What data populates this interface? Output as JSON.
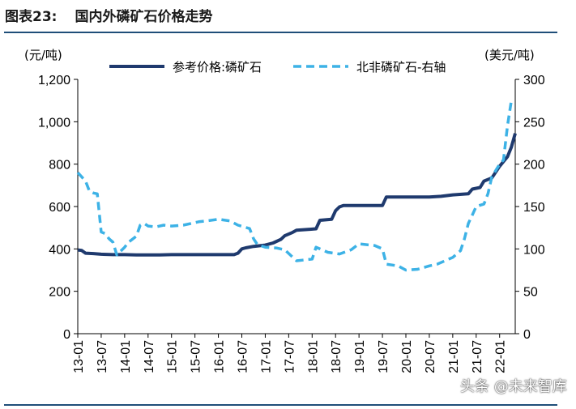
{
  "figure": {
    "label": "图表23:",
    "title": "国内外磷矿石价格走势"
  },
  "watermark": "头条 @未来智库",
  "chart_data": {
    "type": "line",
    "y_left_unit": "(元/吨)",
    "y_right_unit": "(美元/吨)",
    "y_left_lim": [
      0,
      1200
    ],
    "y_right_lim": [
      0,
      300
    ],
    "y_left_ticks": [
      "0",
      "200",
      "400",
      "600",
      "800",
      "1,000",
      "1,200"
    ],
    "y_right_ticks": [
      "0",
      "50",
      "100",
      "150",
      "200",
      "250",
      "300"
    ],
    "x_ticks": [
      "13-01",
      "13-07",
      "14-01",
      "14-07",
      "15-01",
      "15-07",
      "16-01",
      "16-07",
      "17-01",
      "17-07",
      "18-01",
      "18-07",
      "19-01",
      "19-07",
      "20-01",
      "20-07",
      "21-01",
      "21-07",
      "22-01"
    ],
    "legend_position": "top",
    "series": [
      {
        "name": "参考价格:磷矿石",
        "axis": "left",
        "style": "solid",
        "color": "#1f3a6e",
        "points": [
          [
            "13-01",
            395
          ],
          [
            "13-02",
            393
          ],
          [
            "13-03",
            380
          ],
          [
            "13-05",
            378
          ],
          [
            "13-07",
            375
          ],
          [
            "13-10",
            373
          ],
          [
            "14-01",
            373
          ],
          [
            "14-04",
            372
          ],
          [
            "14-07",
            372
          ],
          [
            "14-10",
            372
          ],
          [
            "15-01",
            373
          ],
          [
            "15-04",
            373
          ],
          [
            "15-07",
            373
          ],
          [
            "15-10",
            373
          ],
          [
            "16-01",
            373
          ],
          [
            "16-05",
            373
          ],
          [
            "16-06",
            380
          ],
          [
            "16-07",
            400
          ],
          [
            "16-08",
            405
          ],
          [
            "16-10",
            412
          ],
          [
            "17-01",
            418
          ],
          [
            "17-03",
            428
          ],
          [
            "17-05",
            445
          ],
          [
            "17-06",
            462
          ],
          [
            "17-08",
            478
          ],
          [
            "17-09",
            488
          ],
          [
            "17-12",
            492
          ],
          [
            "18-02",
            495
          ],
          [
            "18-03",
            535
          ],
          [
            "18-06",
            540
          ],
          [
            "18-07",
            580
          ],
          [
            "18-08",
            598
          ],
          [
            "18-09",
            605
          ],
          [
            "19-01",
            605
          ],
          [
            "19-05",
            605
          ],
          [
            "19-07",
            605
          ],
          [
            "19-08",
            645
          ],
          [
            "20-01",
            645
          ],
          [
            "20-07",
            645
          ],
          [
            "20-10",
            648
          ],
          [
            "21-01",
            655
          ],
          [
            "21-05",
            660
          ],
          [
            "21-06",
            682
          ],
          [
            "21-08",
            690
          ],
          [
            "21-09",
            720
          ],
          [
            "21-11",
            735
          ],
          [
            "22-01",
            790
          ],
          [
            "22-03",
            835
          ],
          [
            "22-04",
            880
          ],
          [
            "22-05",
            945
          ]
        ]
      },
      {
        "name": "北非磷矿石-右轴",
        "axis": "right",
        "style": "dashed",
        "color": "#3db2e6",
        "points": [
          [
            "13-01",
            190
          ],
          [
            "13-03",
            180
          ],
          [
            "13-04",
            168
          ],
          [
            "13-05",
            166
          ],
          [
            "13-06",
            165
          ],
          [
            "13-07",
            120
          ],
          [
            "13-08",
            118
          ],
          [
            "13-09",
            112
          ],
          [
            "13-10",
            108
          ],
          [
            "13-11",
            93
          ],
          [
            "14-01",
            102
          ],
          [
            "14-02",
            108
          ],
          [
            "14-04",
            115
          ],
          [
            "14-05",
            128
          ],
          [
            "14-06",
            130
          ],
          [
            "14-07",
            127
          ],
          [
            "14-09",
            126
          ],
          [
            "14-11",
            128
          ],
          [
            "15-01",
            127
          ],
          [
            "15-04",
            128
          ],
          [
            "15-06",
            130
          ],
          [
            "15-08",
            132
          ],
          [
            "15-10",
            133
          ],
          [
            "16-01",
            135
          ],
          [
            "16-04",
            133
          ],
          [
            "16-06",
            128
          ],
          [
            "16-09",
            124
          ],
          [
            "16-10",
            112
          ],
          [
            "16-11",
            105
          ],
          [
            "17-01",
            102
          ],
          [
            "17-04",
            101
          ],
          [
            "17-06",
            99
          ],
          [
            "17-09",
            86
          ],
          [
            "18-01",
            88
          ],
          [
            "18-02",
            102
          ],
          [
            "18-05",
            96
          ],
          [
            "18-08",
            94
          ],
          [
            "18-11",
            99
          ],
          [
            "19-01",
            106
          ],
          [
            "19-05",
            104
          ],
          [
            "19-07",
            100
          ],
          [
            "19-08",
            82
          ],
          [
            "19-11",
            80
          ],
          [
            "20-01",
            75
          ],
          [
            "20-04",
            76
          ],
          [
            "20-07",
            80
          ],
          [
            "20-09",
            82
          ],
          [
            "21-01",
            90
          ],
          [
            "21-03",
            98
          ],
          [
            "21-04",
            112
          ],
          [
            "21-05",
            130
          ],
          [
            "21-06",
            140
          ],
          [
            "21-07",
            150
          ],
          [
            "21-09",
            153
          ],
          [
            "21-10",
            165
          ],
          [
            "21-11",
            185
          ],
          [
            "22-01",
            200
          ],
          [
            "22-02",
            205
          ],
          [
            "22-03",
            245
          ],
          [
            "22-04",
            275
          ]
        ]
      }
    ]
  }
}
